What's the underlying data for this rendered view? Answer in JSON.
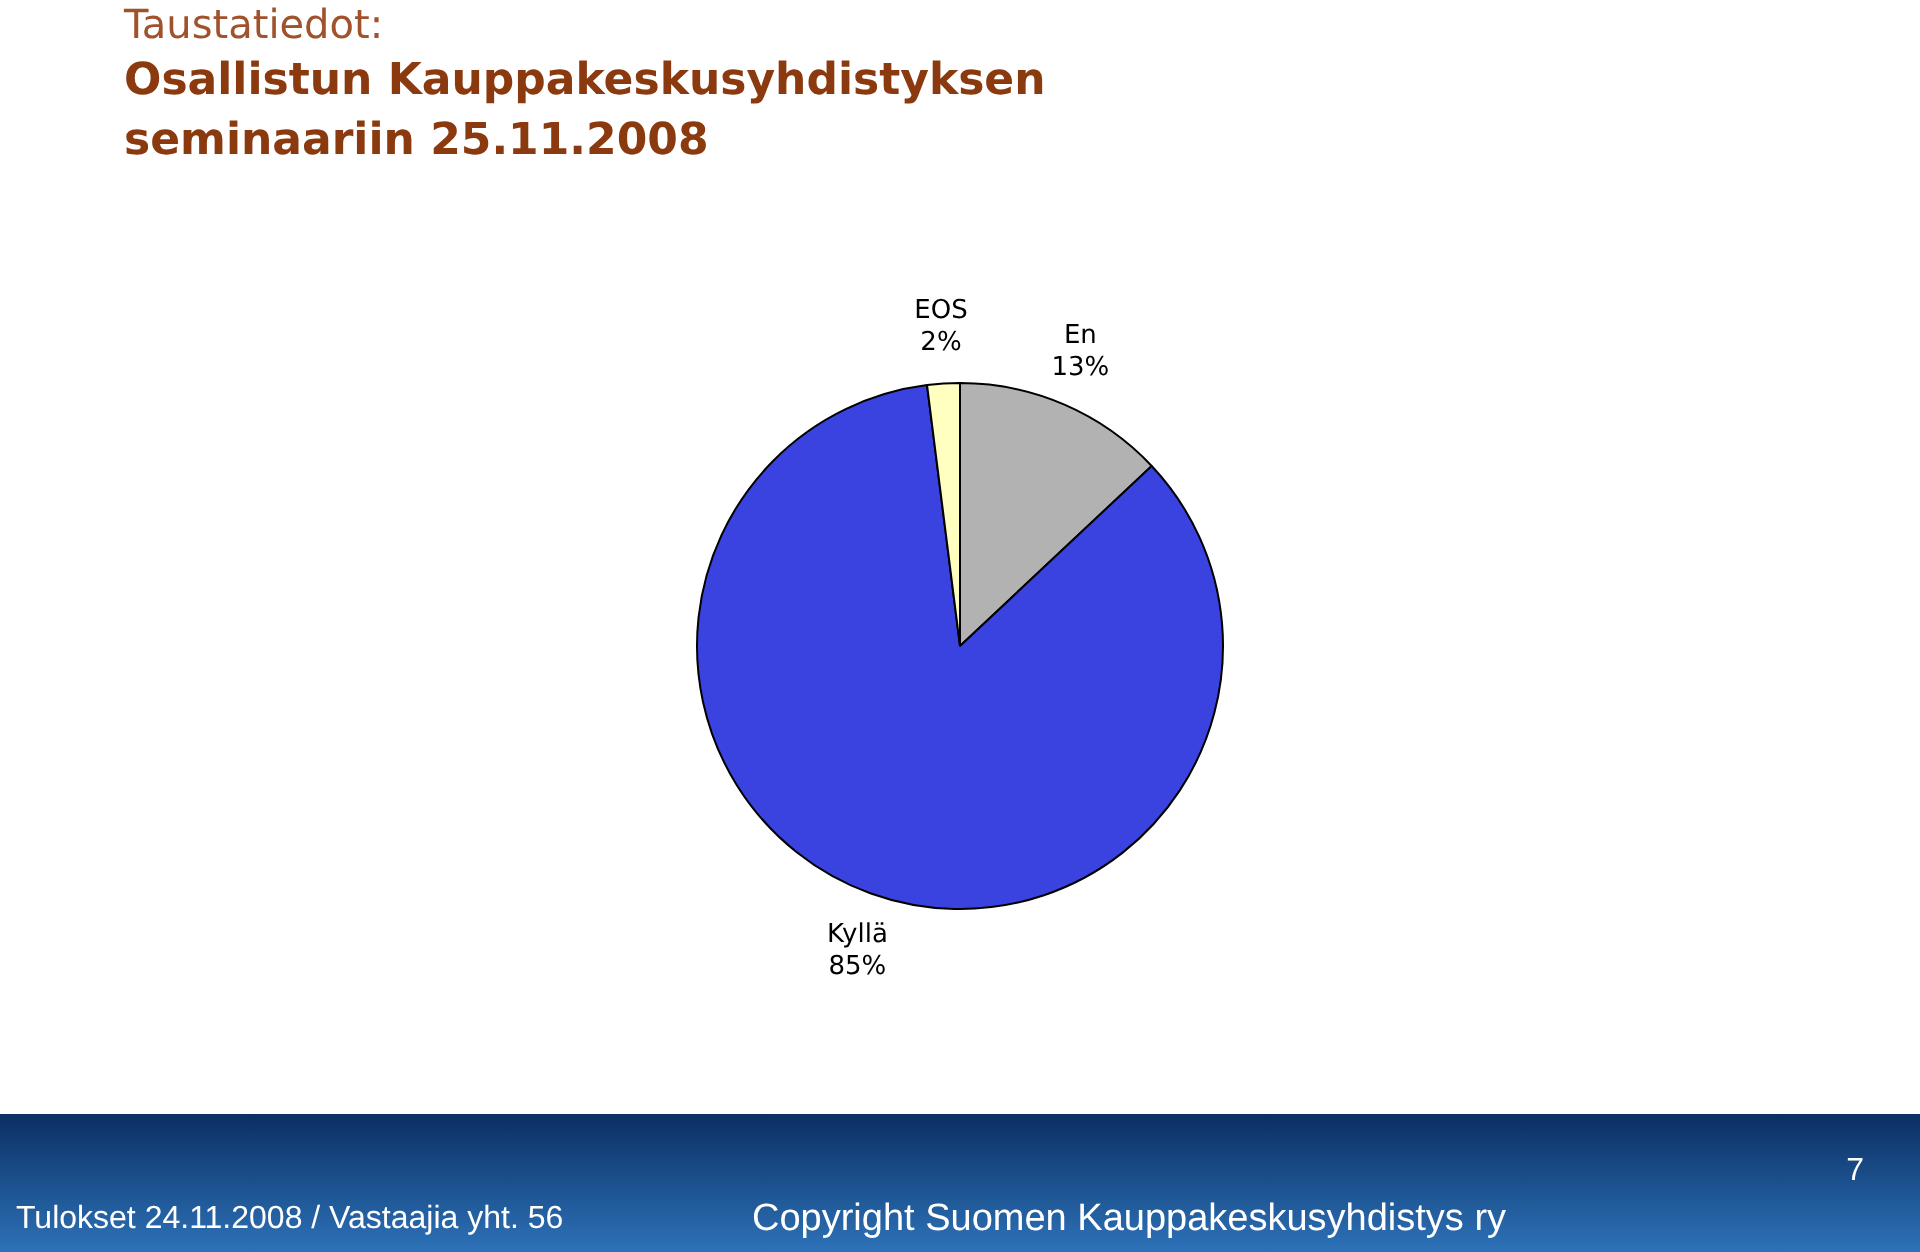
{
  "chart_data": {
    "type": "pie",
    "title": "Taustatiedot:",
    "subtitle": "Osallistun Kauppakeskusyhdistyksen seminaariin 25.11.2008",
    "categories": [
      "En",
      "Kyllä",
      "EOS"
    ],
    "values": [
      13,
      85,
      2
    ],
    "colors": [
      "#b2b2b2",
      "#3a43e0",
      "#ffffc0"
    ],
    "value_labels": [
      "13%",
      "85%",
      "2%"
    ],
    "legend": false,
    "annotations": [
      "Tulokset 24.11.2008 / Vastaajia yht. 56",
      "Copyright Suomen Kauppakeskusyhdistys ry",
      "7"
    ]
  }
}
